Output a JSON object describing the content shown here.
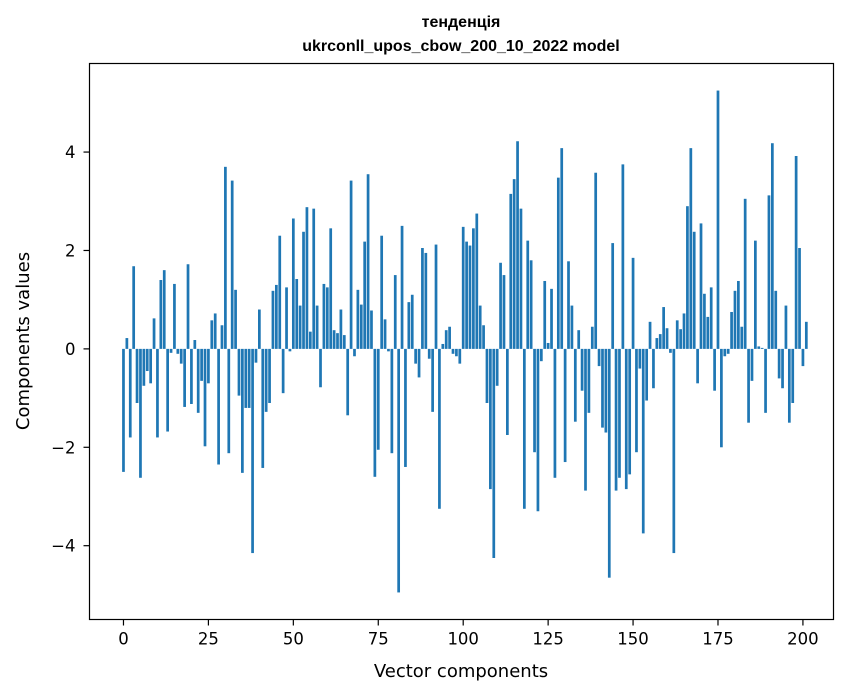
{
  "chart_data": {
    "type": "bar",
    "title_line1": "тенденція",
    "title_line2": "ukrconll_upos_cbow_200_10_2022 model",
    "xlabel": "Vector components",
    "ylabel": "Components values",
    "xlim": [
      -10,
      209
    ],
    "ylim": [
      -5.5,
      5.8
    ],
    "xticks": [
      0,
      25,
      50,
      75,
      100,
      125,
      150,
      175,
      200
    ],
    "yticks": [
      -4,
      -2,
      0,
      2,
      4
    ],
    "ytick_labels": [
      "−4",
      "−2",
      "0",
      "2",
      "4"
    ],
    "bar_color": "#1f77b4",
    "values": [
      -2.5,
      0.22,
      -1.8,
      1.68,
      -1.1,
      -2.62,
      -0.75,
      -0.45,
      -0.7,
      0.62,
      -1.8,
      1.4,
      1.6,
      -1.68,
      -0.08,
      1.32,
      -0.1,
      -0.3,
      -1.18,
      1.72,
      -1.12,
      0.18,
      -1.3,
      -0.65,
      -1.98,
      -0.7,
      0.58,
      0.72,
      -2.35,
      0.48,
      3.7,
      -2.12,
      3.42,
      1.2,
      -0.95,
      -2.52,
      -1.2,
      -1.2,
      -4.15,
      -0.28,
      0.8,
      -2.42,
      -1.28,
      -1.1,
      1.18,
      1.3,
      2.3,
      -0.9,
      1.25,
      -0.05,
      2.65,
      1.42,
      0.88,
      2.38,
      2.88,
      0.35,
      2.85,
      0.88,
      -0.78,
      1.32,
      1.25,
      2.45,
      0.38,
      0.32,
      0.8,
      0.28,
      -1.35,
      3.42,
      -0.15,
      1.2,
      0.9,
      2.18,
      3.55,
      0.78,
      -2.6,
      -2.05,
      2.3,
      0.6,
      -0.05,
      -2.12,
      1.5,
      -4.95,
      2.5,
      -2.4,
      0.95,
      1.1,
      -0.3,
      -0.58,
      2.05,
      1.95,
      -0.2,
      -1.28,
      2.12,
      -3.25,
      0.1,
      0.38,
      0.45,
      -0.1,
      -0.15,
      -0.3,
      2.48,
      2.18,
      2.1,
      2.45,
      2.75,
      0.88,
      0.48,
      -1.1,
      -2.85,
      -4.25,
      -0.75,
      1.75,
      1.5,
      -1.75,
      3.15,
      3.45,
      4.22,
      2.85,
      -3.25,
      2.2,
      1.8,
      -2.1,
      -3.3,
      -0.25,
      1.38,
      0.12,
      1.22,
      -2.62,
      3.48,
      4.08,
      -2.3,
      1.78,
      0.88,
      -1.48,
      0.38,
      -0.85,
      -2.88,
      -1.3,
      0.45,
      3.58,
      -0.35,
      -1.6,
      -1.7,
      -4.65,
      2.15,
      -2.88,
      -2.62,
      3.75,
      -2.85,
      -2.55,
      1.85,
      -2.1,
      -0.4,
      -3.75,
      -1.05,
      0.55,
      -0.8,
      0.22,
      0.3,
      0.85,
      0.42,
      -0.08,
      -4.15,
      0.58,
      0.4,
      0.72,
      2.9,
      4.08,
      2.38,
      -0.7,
      2.55,
      1.12,
      0.65,
      1.25,
      -0.85,
      5.25,
      -2.0,
      -0.15,
      -0.1,
      0.75,
      1.18,
      1.38,
      0.45,
      3.05,
      -1.5,
      -0.65,
      2.2,
      0.05,
      0.02,
      -1.3,
      3.12,
      4.18,
      1.18,
      -0.6,
      -0.8,
      0.88,
      -1.5,
      -1.1,
      3.92,
      2.05,
      -0.35,
      0.55
    ]
  }
}
